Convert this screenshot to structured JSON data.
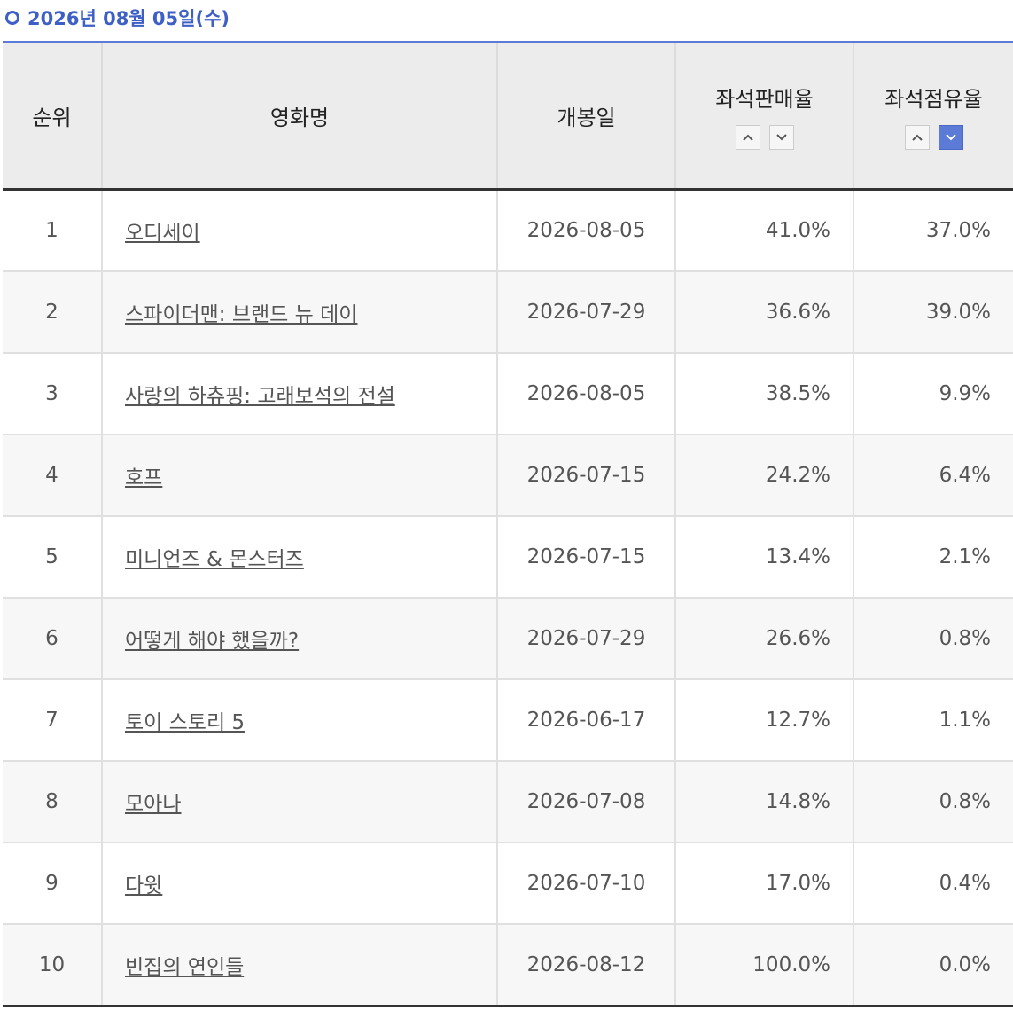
{
  "header": {
    "title": "2026년 08월 05일(수)"
  },
  "table": {
    "columns": [
      "순위",
      "영화명",
      "개봉일",
      "좌석판매율",
      "좌석점유율"
    ],
    "rows": [
      [
        "1",
        "오디세이",
        "2026-08-05",
        "41.0%",
        "37.0%"
      ],
      [
        "2",
        "스파이더맨: 브랜드 뉴 데이",
        "2026-07-29",
        "36.6%",
        "39.0%"
      ],
      [
        "3",
        "사랑의 하츄핑: 고래보석의 전설",
        "2026-08-05",
        "38.5%",
        "9.9%"
      ],
      [
        "4",
        "호프",
        "2026-07-15",
        "24.2%",
        "6.4%"
      ],
      [
        "5",
        "미니언즈 & 몬스터즈",
        "2026-07-15",
        "13.4%",
        "2.1%"
      ],
      [
        "6",
        "어떻게 해야 했을까?",
        "2026-07-29",
        "26.6%",
        "0.8%"
      ],
      [
        "7",
        "토이 스토리 5",
        "2026-06-17",
        "12.7%",
        "1.1%"
      ],
      [
        "8",
        "모아나",
        "2026-07-08",
        "14.8%",
        "0.8%"
      ],
      [
        "9",
        "다윗",
        "2026-07-10",
        "17.0%",
        "0.4%"
      ],
      [
        "10",
        "빈집의 연인들",
        "2026-08-12",
        "100.0%",
        "0.0%"
      ]
    ]
  }
}
